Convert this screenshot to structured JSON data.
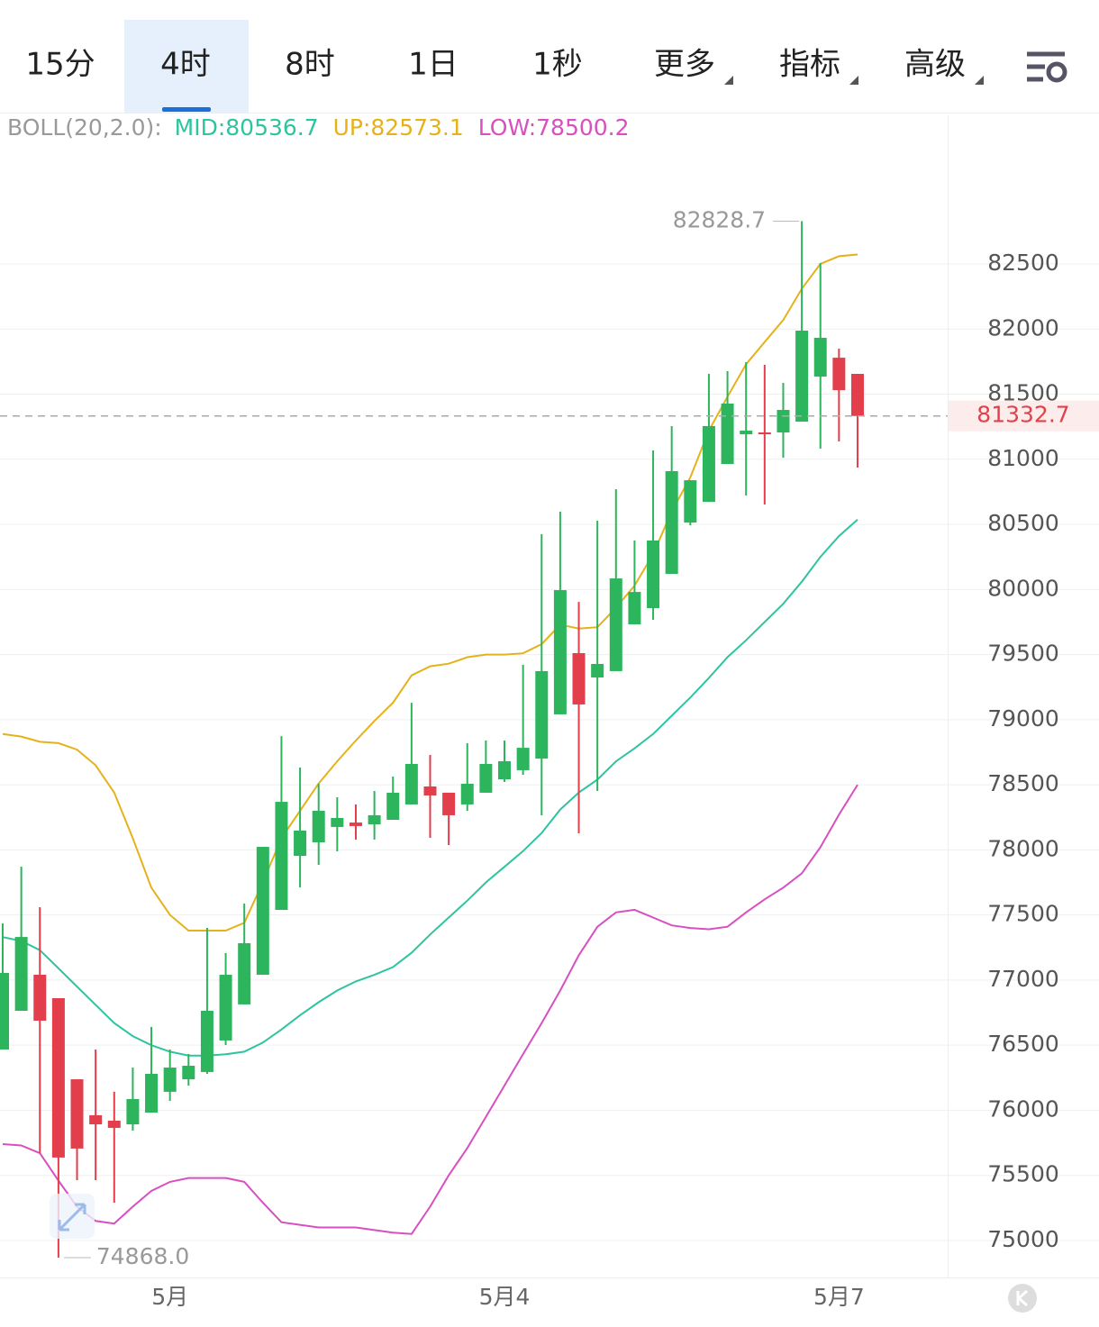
{
  "tabs": [
    "15分",
    "4时",
    "8时",
    "1日",
    "1秒",
    "更多",
    "指标",
    "高级"
  ],
  "selected_tab": 1,
  "chart_data": {
    "type": "candlestick",
    "indicator_label": "BOLL(20,2.0):",
    "max_label": "82828.7",
    "min_label": "74868.0",
    "last_price_label": "81332.7",
    "up_color": "#2db55d",
    "down_color": "#e23e4b",
    "ylim": [
      74716,
      83628
    ],
    "yticks": [
      75000,
      75500,
      76000,
      76500,
      77000,
      77500,
      78000,
      78500,
      79000,
      79500,
      80000,
      80500,
      81000,
      81500,
      82000,
      82500
    ],
    "grid": true,
    "categories": [
      null,
      null,
      null,
      null,
      null,
      null,
      null,
      null,
      null,
      "5月",
      null,
      null,
      null,
      null,
      null,
      null,
      null,
      null,
      null,
      null,
      null,
      null,
      null,
      null,
      null,
      null,
      null,
      "5月4",
      null,
      null,
      null,
      null,
      null,
      null,
      null,
      null,
      null,
      null,
      null,
      null,
      null,
      null,
      null,
      null,
      null,
      "5月7",
      null
    ],
    "open": [
      76467,
      76764,
      77041,
      76861,
      76238,
      75962,
      75920,
      75892,
      75982,
      76142,
      76238,
      76294,
      76536,
      76813,
      77041,
      77539,
      77954,
      78058,
      78176,
      78210,
      78196,
      78231,
      78349,
      78487,
      78439,
      78349,
      78439,
      78542,
      78612,
      78701,
      79041,
      79511,
      79324,
      79373,
      79732,
      79857,
      80120,
      80514,
      80673,
      80964,
      81192,
      81206,
      81206,
      81289,
      81635,
      81780,
      81656
    ],
    "high": [
      77435,
      77871,
      77560,
      76861,
      76238,
      76467,
      76142,
      76328,
      76640,
      76467,
      76432,
      77401,
      77207,
      77588,
      78023,
      78874,
      78632,
      78508,
      78404,
      78349,
      78452,
      78563,
      79130,
      78729,
      78439,
      78819,
      78840,
      78840,
      79421,
      80424,
      80597,
      79905,
      80528,
      80770,
      80376,
      81068,
      81255,
      80839,
      81656,
      81677,
      81746,
      81725,
      81587,
      82828.7,
      82507,
      81850,
      81656
    ],
    "low": [
      76467,
      76764,
      75671,
      74868.0,
      75463,
      75463,
      75290,
      75844,
      75982,
      76072,
      76190,
      76280,
      76501,
      76813,
      77041,
      77539,
      77712,
      77885,
      77989,
      78079,
      78079,
      78231,
      78349,
      78093,
      78037,
      78300,
      78439,
      78522,
      78577,
      78266,
      79041,
      78127,
      78452,
      79373,
      79732,
      79767,
      80120,
      80493,
      80673,
      80964,
      80722,
      80653,
      81012,
      81289,
      81082,
      81137,
      80936
    ],
    "close": [
      77055,
      77331,
      76688,
      75637,
      75706,
      75892,
      75865,
      76086,
      76280,
      76328,
      76342,
      76764,
      77041,
      77283,
      78023,
      78369,
      78148,
      78300,
      78245,
      78183,
      78266,
      78439,
      78660,
      78418,
      78266,
      78508,
      78660,
      78681,
      78784,
      79373,
      79995,
      79117,
      79428,
      80085,
      79981,
      80376,
      80909,
      80839,
      81255,
      81428,
      81220,
      81192,
      81379,
      81988,
      81933,
      81531,
      81332.7
    ],
    "series": [
      {
        "label": "MID:80536.7",
        "color": "#2ec4a0",
        "values": [
          77330,
          77300,
          77230,
          77090,
          76950,
          76810,
          76670,
          76570,
          76500,
          76450,
          76420,
          76420,
          76430,
          76450,
          76520,
          76620,
          76730,
          76830,
          76920,
          76990,
          77040,
          77100,
          77210,
          77350,
          77480,
          77610,
          77750,
          77870,
          77990,
          78130,
          78310,
          78440,
          78540,
          78680,
          78780,
          78890,
          79030,
          79170,
          79320,
          79480,
          79610,
          79750,
          79890,
          80060,
          80250,
          80410,
          80536.7
        ]
      },
      {
        "label": "UP:82573.1",
        "color": "#e5b21a",
        "values": [
          78890,
          78870,
          78830,
          78820,
          78770,
          78650,
          78440,
          78090,
          77710,
          77500,
          77380,
          77380,
          77380,
          77440,
          77750,
          78090,
          78300,
          78510,
          78680,
          78840,
          78990,
          79130,
          79340,
          79410,
          79430,
          79480,
          79500,
          79500,
          79510,
          79580,
          79730,
          79700,
          79710,
          79860,
          80030,
          80270,
          80600,
          80860,
          81220,
          81480,
          81730,
          81900,
          82070,
          82310,
          82500,
          82560,
          82573.1
        ]
      },
      {
        "label": "LOW:78500.2",
        "color": "#d84fc0",
        "values": [
          75740,
          75730,
          75670,
          75460,
          75260,
          75150,
          75130,
          75260,
          75380,
          75450,
          75480,
          75480,
          75480,
          75450,
          75290,
          75140,
          75120,
          75100,
          75100,
          75100,
          75080,
          75060,
          75050,
          75260,
          75500,
          75710,
          75950,
          76190,
          76430,
          76670,
          76920,
          77190,
          77410,
          77520,
          77540,
          77480,
          77420,
          77400,
          77390,
          77410,
          77520,
          77620,
          77710,
          77820,
          78020,
          78270,
          78500.2
        ]
      }
    ]
  }
}
